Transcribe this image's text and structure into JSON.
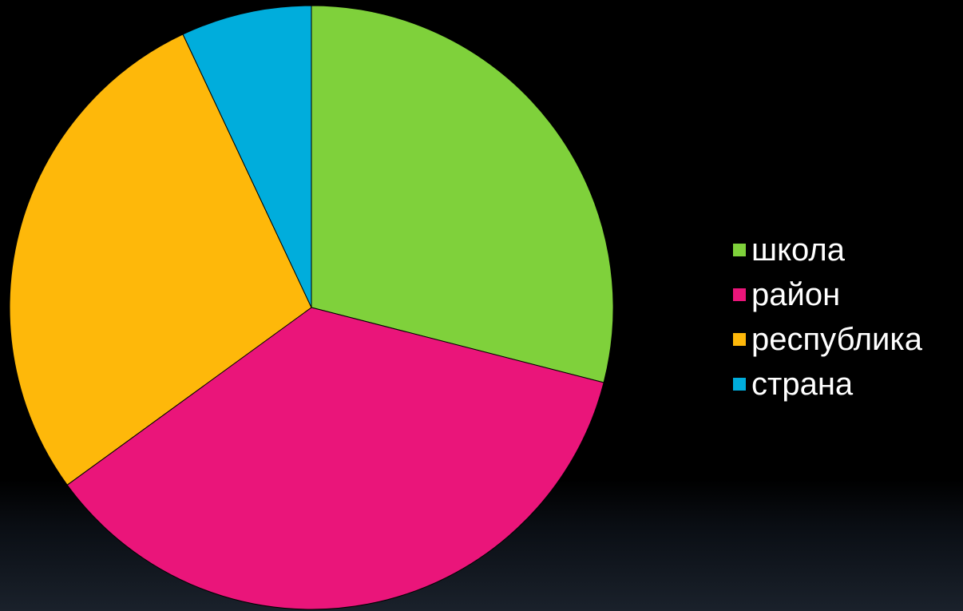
{
  "chart_data": {
    "type": "pie",
    "title": "",
    "categories": [
      "школа",
      "район",
      "республика",
      "страна"
    ],
    "values": [
      29,
      36,
      28,
      7
    ],
    "colors": [
      "#7fd13b",
      "#ea157a",
      "#feb80a",
      "#00addc"
    ],
    "start": "12 o'clock",
    "direction": "clockwise",
    "legend_position": "right"
  }
}
